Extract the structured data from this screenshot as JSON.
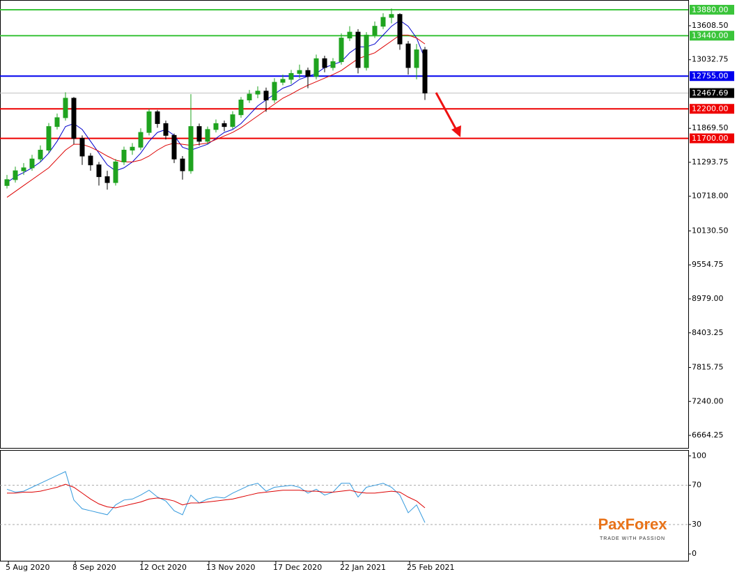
{
  "chart_data": {
    "type": "candlestick",
    "x": [
      2,
      5,
      8,
      11,
      14,
      17,
      20,
      23,
      26,
      29,
      32,
      35,
      38,
      41,
      44,
      47,
      50,
      53,
      56,
      59,
      62,
      65,
      68,
      71,
      74,
      77,
      80,
      83,
      86,
      89,
      92,
      95,
      98,
      101,
      104,
      107,
      110,
      113,
      116,
      119,
      122,
      125,
      128,
      131,
      134,
      137,
      140,
      143,
      146,
      149,
      152
    ],
    "open": [
      10900,
      11000,
      11150,
      11200,
      11350,
      11500,
      11900,
      12050,
      12380,
      11700,
      11400,
      11250,
      11050,
      10950,
      11300,
      11500,
      11550,
      11800,
      12150,
      11950,
      11750,
      11350,
      11150,
      11900,
      11650,
      11850,
      11950,
      11900,
      12100,
      12350,
      12450,
      12500,
      12350,
      12650,
      12700,
      12800,
      12850,
      12750,
      13050,
      12900,
      13000,
      13400,
      13500,
      12900,
      13450,
      13600,
      13750,
      13800,
      13300,
      12900,
      13200
    ],
    "high": [
      11080,
      11220,
      11280,
      11420,
      11580,
      11960,
      12120,
      12480,
      12400,
      11750,
      11450,
      11300,
      11150,
      11350,
      11560,
      11620,
      11870,
      12200,
      12180,
      12000,
      11780,
      11400,
      12450,
      11950,
      11900,
      12020,
      12000,
      12160,
      12400,
      12520,
      12580,
      12560,
      12720,
      12780,
      12860,
      12950,
      12900,
      13120,
      13100,
      13060,
      13480,
      13600,
      13550,
      13500,
      13680,
      13820,
      13900,
      13820,
      13350,
      13300,
      13250
    ],
    "low": [
      10850,
      10950,
      11080,
      11150,
      11300,
      11450,
      11850,
      12000,
      11600,
      11250,
      11150,
      10900,
      10830,
      10900,
      11250,
      11420,
      11500,
      11750,
      11880,
      11680,
      11280,
      11000,
      11100,
      11580,
      11600,
      11800,
      11820,
      11860,
      12050,
      12300,
      12380,
      12150,
      12300,
      12600,
      12620,
      12720,
      12550,
      12700,
      12820,
      12850,
      12950,
      13350,
      12800,
      12850,
      13400,
      13550,
      13650,
      13200,
      12780,
      12700,
      12350
    ],
    "close": [
      11000,
      11150,
      11200,
      11350,
      11500,
      11900,
      12050,
      12380,
      11700,
      11400,
      11250,
      11050,
      10950,
      11300,
      11500,
      11550,
      11800,
      12150,
      11950,
      11750,
      11350,
      11150,
      11900,
      11650,
      11850,
      11950,
      11900,
      12100,
      12350,
      12450,
      12500,
      12350,
      12650,
      12700,
      12800,
      12850,
      12750,
      13050,
      12900,
      13000,
      13400,
      13500,
      12900,
      13450,
      13600,
      13750,
      13800,
      13300,
      12900,
      13200,
      12467.69
    ],
    "up_color": "#1fa31f",
    "down_color": "#000000",
    "ma": [
      {
        "color": "#0000cc",
        "values": [
          10950,
          11050,
          11120,
          11200,
          11300,
          11450,
          11650,
          11900,
          11950,
          11850,
          11650,
          11450,
          11250,
          11150,
          11200,
          11300,
          11450,
          11650,
          11800,
          11850,
          11750,
          11550,
          11500,
          11550,
          11600,
          11700,
          11800,
          11850,
          11950,
          12100,
          12250,
          12350,
          12450,
          12550,
          12600,
          12700,
          12750,
          12800,
          12900,
          12950,
          13000,
          13150,
          13250,
          13250,
          13300,
          13450,
          13600,
          13700,
          13600,
          13400,
          13050
        ]
      },
      {
        "color": "#dd0000",
        "values": [
          10700,
          10800,
          10900,
          11000,
          11100,
          11200,
          11350,
          11500,
          11600,
          11600,
          11550,
          11480,
          11400,
          11330,
          11300,
          11300,
          11330,
          11400,
          11500,
          11580,
          11620,
          11600,
          11580,
          11600,
          11620,
          11680,
          11740,
          11800,
          11880,
          11980,
          12080,
          12180,
          12280,
          12380,
          12450,
          12530,
          12600,
          12660,
          12720,
          12780,
          12850,
          12950,
          13050,
          13100,
          13150,
          13250,
          13350,
          13450,
          13450,
          13400,
          13300
        ]
      }
    ],
    "xlim": [
      -0.5,
      246.5
    ],
    "xticks": [
      {
        "value": 2.5,
        "label": "5 Aug 2020"
      },
      {
        "value": 26.5,
        "label": "8 Sep 2020"
      },
      {
        "value": 50.5,
        "label": "12 Oct 2020"
      },
      {
        "value": 74.5,
        "label": "13 Nov 2020"
      },
      {
        "value": 98.5,
        "label": "17 Dec 2020"
      },
      {
        "value": 122.5,
        "label": "22 Jan 2021"
      },
      {
        "value": 146.5,
        "label": "25 Feb 2021"
      }
    ],
    "ylim": [
      6452,
      14045
    ],
    "yticks": [
      {
        "value": 13608.5,
        "label": "13608.50"
      },
      13032.75,
      {
        "value": 11869.5,
        "label": "11869.50"
      },
      11293.75,
      {
        "value": 10718,
        "label": "10718.00"
      },
      {
        "value": 10130.5,
        "label": "10130.50"
      },
      9554.75,
      {
        "value": 8979,
        "label": "8979.00"
      },
      8403.25,
      7815.75,
      {
        "value": 7240,
        "label": "7240.00"
      },
      6664.25
    ],
    "levels": [
      {
        "value": 13880,
        "label": "13880.00",
        "color": "#3ac43a"
      },
      {
        "value": 13440,
        "label": "13440.00",
        "color": "#3ac43a"
      },
      {
        "value": 12755,
        "label": "12755.00",
        "color": "#0000ee"
      },
      {
        "value": 12467.69,
        "label": "12467.69",
        "color": "#000000"
      },
      {
        "value": 12200,
        "label": "12200.00",
        "color": "#ee0000"
      },
      {
        "value": 11700,
        "label": "11700.00",
        "color": "#ee0000"
      }
    ],
    "rsi": {
      "ylim": [
        -7,
        106
      ],
      "yticks": [
        100,
        70,
        30,
        0
      ],
      "lines": [
        {
          "color": "#3399dd",
          "values": [
            66,
            63,
            64,
            68,
            72,
            76,
            80,
            84,
            55,
            46,
            44,
            42,
            40,
            50,
            55,
            56,
            60,
            65,
            58,
            54,
            44,
            40,
            60,
            52,
            56,
            58,
            57,
            62,
            66,
            70,
            72,
            64,
            68,
            69,
            70,
            68,
            62,
            66,
            60,
            63,
            72,
            72,
            58,
            68,
            70,
            72,
            68,
            60,
            42,
            50,
            32
          ]
        },
        {
          "color": "#dd0000",
          "values": [
            62,
            62,
            63,
            63,
            64,
            66,
            68,
            71,
            68,
            62,
            56,
            51,
            48,
            47,
            49,
            51,
            53,
            56,
            57,
            56,
            54,
            50,
            52,
            52,
            53,
            54,
            55,
            56,
            58,
            60,
            62,
            63,
            64,
            65,
            65,
            65,
            64,
            64,
            63,
            63,
            64,
            65,
            63,
            62,
            62,
            63,
            64,
            63,
            58,
            54,
            47
          ]
        }
      ]
    }
  },
  "logo": {
    "name": "PaxForex",
    "tagline": "TRADE WITH PASSION"
  }
}
